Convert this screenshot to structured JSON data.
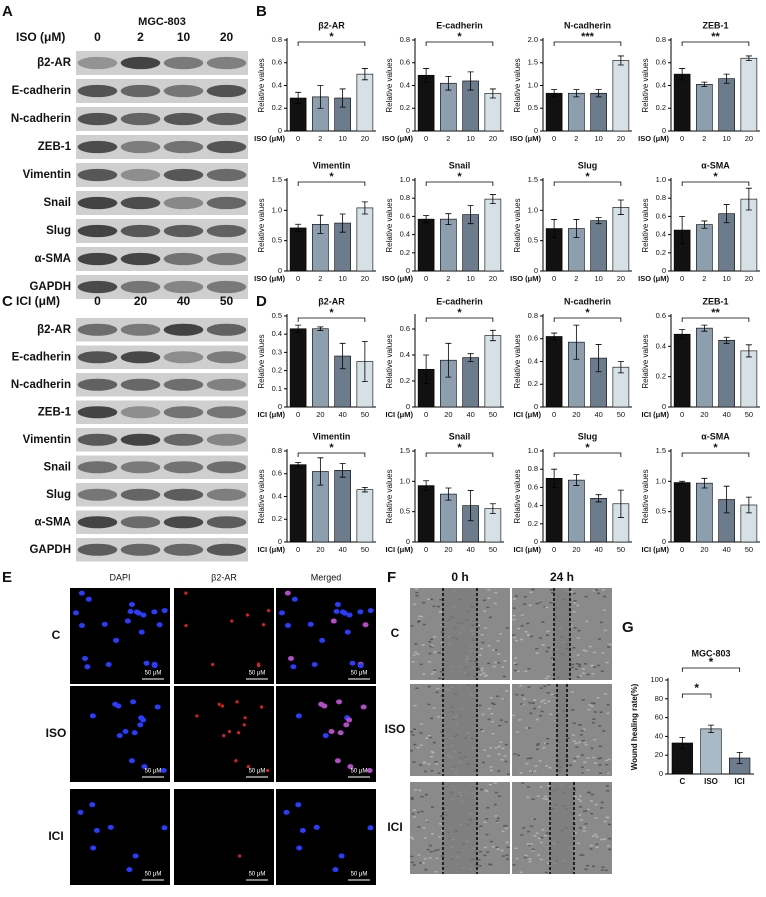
{
  "panels": {
    "a": {
      "label": "A",
      "cell_line": "MGC-803",
      "treatment": "ISO (μM)",
      "doses": [
        "0",
        "2",
        "10",
        "20"
      ],
      "proteins": [
        "β2-AR",
        "E-cadherin",
        "N-cadherin",
        "ZEB-1",
        "Vimentin",
        "Snail",
        "Slug",
        "α-SMA",
        "GAPDH"
      ]
    },
    "b": {
      "label": "B"
    },
    "c": {
      "label": "C",
      "treatment": "ICI (μM)",
      "doses": [
        "0",
        "20",
        "40",
        "50"
      ],
      "proteins": [
        "β2-AR",
        "E-cadherin",
        "N-cadherin",
        "ZEB-1",
        "Vimentin",
        "Snail",
        "Slug",
        "α-SMA",
        "GAPDH"
      ]
    },
    "d": {
      "label": "D"
    },
    "e": {
      "label": "E",
      "columns": [
        "DAPI",
        "β2-AR",
        "Merged"
      ],
      "rows": [
        "C",
        "ISO",
        "ICI"
      ],
      "scale_bar": "50 μM"
    },
    "f": {
      "label": "F",
      "columns": [
        "0 h",
        "24 h"
      ],
      "rows": [
        "C",
        "ISO",
        "ICI"
      ]
    },
    "g": {
      "label": "G"
    }
  },
  "chart_data": [
    {
      "type": "bar",
      "title": "β2-AR",
      "y_label": "Relative values",
      "x_label": "ISO (μM)",
      "categories": [
        "0",
        "2",
        "10",
        "20"
      ],
      "values": [
        0.29,
        0.3,
        0.29,
        0.5
      ],
      "errors": [
        0.05,
        0.1,
        0.08,
        0.05
      ],
      "colors": [
        "#111111",
        "#8d9eae",
        "#6c7c8c",
        "#d6e1e6"
      ],
      "ylim": [
        0,
        0.8
      ],
      "yticks": [
        0,
        0.2,
        0.4,
        0.6,
        0.8
      ],
      "significance": "*"
    },
    {
      "type": "bar",
      "title": "E-cadherin",
      "y_label": "Relative values",
      "x_label": "ISO (μM)",
      "categories": [
        "0",
        "2",
        "10",
        "20"
      ],
      "values": [
        0.49,
        0.42,
        0.44,
        0.33
      ],
      "errors": [
        0.06,
        0.06,
        0.08,
        0.04
      ],
      "colors": [
        "#111111",
        "#8d9eae",
        "#6c7c8c",
        "#d6e1e6"
      ],
      "ylim": [
        0,
        0.8
      ],
      "yticks": [
        0,
        0.2,
        0.4,
        0.6,
        0.8
      ],
      "significance": "*"
    },
    {
      "type": "bar",
      "title": "N-cadherin",
      "y_label": "Relative values",
      "x_label": "ISO (μM)",
      "categories": [
        "0",
        "2",
        "10",
        "20"
      ],
      "values": [
        0.83,
        0.83,
        0.83,
        1.55
      ],
      "errors": [
        0.08,
        0.08,
        0.08,
        0.1
      ],
      "colors": [
        "#111111",
        "#8d9eae",
        "#6c7c8c",
        "#d6e1e6"
      ],
      "ylim": [
        0,
        2
      ],
      "yticks": [
        0,
        0.5,
        {
          "value": 1,
          "label": "1.0"
        },
        1.5,
        {
          "value": 2,
          "label": "2.0"
        }
      ],
      "significance": "***"
    },
    {
      "type": "bar",
      "title": "ZEB-1",
      "y_label": "Relative values",
      "x_label": "ISO (μM)",
      "categories": [
        "0",
        "2",
        "10",
        "20"
      ],
      "values": [
        0.5,
        0.41,
        0.46,
        0.64
      ],
      "errors": [
        0.05,
        0.02,
        0.04,
        0.02
      ],
      "colors": [
        "#111111",
        "#8d9eae",
        "#6c7c8c",
        "#d6e1e6"
      ],
      "ylim": [
        0,
        0.8
      ],
      "yticks": [
        0,
        0.2,
        0.4,
        0.6,
        0.8
      ],
      "significance": "**"
    },
    {
      "type": "bar",
      "title": "Vimentin",
      "y_label": "Relative values",
      "x_label": "ISO (μM)",
      "categories": [
        "0",
        "2",
        "10",
        "20"
      ],
      "values": [
        0.71,
        0.77,
        0.79,
        1.04
      ],
      "errors": [
        0.06,
        0.15,
        0.15,
        0.1
      ],
      "colors": [
        "#111111",
        "#8d9eae",
        "#6c7c8c",
        "#d6e1e6"
      ],
      "ylim": [
        0,
        1.5
      ],
      "yticks": [
        0,
        0.5,
        {
          "value": 1,
          "label": "1.0"
        },
        1.5
      ],
      "significance": "*"
    },
    {
      "type": "bar",
      "title": "Snail",
      "y_label": "Relative values",
      "x_label": "ISO (μM)",
      "categories": [
        "0",
        "2",
        "10",
        "20"
      ],
      "values": [
        0.57,
        0.57,
        0.62,
        0.79
      ],
      "errors": [
        0.04,
        0.06,
        0.1,
        0.05
      ],
      "colors": [
        "#111111",
        "#8d9eae",
        "#6c7c8c",
        "#d6e1e6"
      ],
      "ylim": [
        0,
        1
      ],
      "yticks": [
        0,
        0.2,
        0.4,
        0.6,
        0.8,
        {
          "value": 1,
          "label": "1.0"
        }
      ],
      "significance": "*"
    },
    {
      "type": "bar",
      "title": "Slug",
      "y_label": "Relative values",
      "x_label": "ISO (μM)",
      "categories": [
        "0",
        "2",
        "10",
        "20"
      ],
      "values": [
        0.7,
        0.7,
        0.83,
        1.05
      ],
      "errors": [
        0.15,
        0.15,
        0.05,
        0.12
      ],
      "colors": [
        "#111111",
        "#8d9eae",
        "#6c7c8c",
        "#d6e1e6"
      ],
      "ylim": [
        0,
        1.5
      ],
      "yticks": [
        0,
        0.5,
        {
          "value": 1,
          "label": "1.0"
        },
        1.5
      ],
      "significance": "*"
    },
    {
      "type": "bar",
      "title": "α-SMA",
      "y_label": "Relative values",
      "x_label": "ISO (μM)",
      "categories": [
        "0",
        "2",
        "10",
        "20"
      ],
      "values": [
        0.45,
        0.51,
        0.63,
        0.79
      ],
      "errors": [
        0.15,
        0.04,
        0.1,
        0.12
      ],
      "colors": [
        "#111111",
        "#8d9eae",
        "#6c7c8c",
        "#d6e1e6"
      ],
      "ylim": [
        0,
        1
      ],
      "yticks": [
        0,
        0.2,
        0.4,
        0.6,
        0.8,
        {
          "value": 1,
          "label": "1.0"
        }
      ],
      "significance": "*"
    },
    {
      "type": "bar",
      "title": "β2-AR",
      "y_label": "Relative values",
      "x_label": "ICI (μM)",
      "categories": [
        "0",
        "20",
        "40",
        "50"
      ],
      "values": [
        0.43,
        0.43,
        0.28,
        0.25
      ],
      "errors": [
        0.02,
        0.01,
        0.07,
        0.11
      ],
      "colors": [
        "#111111",
        "#8d9eae",
        "#6c7c8c",
        "#d6e1e6"
      ],
      "ylim": [
        0,
        0.5
      ],
      "yticks": [
        0,
        0.1,
        0.2,
        0.3,
        0.4,
        0.5
      ],
      "significance": "*"
    },
    {
      "type": "bar",
      "title": "E-cadherin",
      "y_label": "Relative values",
      "x_label": "ICI (μM)",
      "categories": [
        "0",
        "20",
        "40",
        "50"
      ],
      "values": [
        0.29,
        0.36,
        0.38,
        0.55
      ],
      "errors": [
        0.11,
        0.13,
        0.03,
        0.04
      ],
      "colors": [
        "#111111",
        "#8d9eae",
        "#6c7c8c",
        "#d6e1e6"
      ],
      "ylim": [
        0,
        0.7
      ],
      "yticks": [
        0,
        0.2,
        0.4,
        0.6
      ],
      "significance": "*"
    },
    {
      "type": "bar",
      "title": "N-cadherin",
      "y_label": "Relative values",
      "x_label": "ICI (μM)",
      "categories": [
        "0",
        "20",
        "40",
        "50"
      ],
      "values": [
        0.62,
        0.57,
        0.43,
        0.35
      ],
      "errors": [
        0.03,
        0.15,
        0.12,
        0.05
      ],
      "colors": [
        "#111111",
        "#8d9eae",
        "#6c7c8c",
        "#d6e1e6"
      ],
      "ylim": [
        0,
        0.8
      ],
      "yticks": [
        0,
        0.2,
        0.4,
        0.6,
        0.8
      ],
      "significance": "*"
    },
    {
      "type": "bar",
      "title": "ZEB-1",
      "y_label": "Relative values",
      "x_label": "ICI (μM)",
      "categories": [
        "0",
        "20",
        "40",
        "50"
      ],
      "values": [
        0.48,
        0.52,
        0.44,
        0.37
      ],
      "errors": [
        0.03,
        0.02,
        0.02,
        0.04
      ],
      "colors": [
        "#111111",
        "#8d9eae",
        "#6c7c8c",
        "#d6e1e6"
      ],
      "ylim": [
        0,
        0.6
      ],
      "yticks": [
        0,
        0.2,
        0.4,
        0.6
      ],
      "significance": "**"
    },
    {
      "type": "bar",
      "title": "Vimentin",
      "y_label": "Relative values",
      "x_label": "ICI (μM)",
      "categories": [
        "0",
        "20",
        "40",
        "50"
      ],
      "values": [
        0.68,
        0.62,
        0.63,
        0.46
      ],
      "errors": [
        0.02,
        0.12,
        0.06,
        0.02
      ],
      "colors": [
        "#111111",
        "#8d9eae",
        "#6c7c8c",
        "#d6e1e6"
      ],
      "ylim": [
        0,
        0.8
      ],
      "yticks": [
        0,
        0.2,
        0.4,
        0.6,
        0.8
      ],
      "significance": "*"
    },
    {
      "type": "bar",
      "title": "Snail",
      "y_label": "Relative values",
      "x_label": "ICI (μM)",
      "categories": [
        "0",
        "20",
        "40",
        "50"
      ],
      "values": [
        0.93,
        0.79,
        0.6,
        0.55
      ],
      "errors": [
        0.08,
        0.1,
        0.25,
        0.08
      ],
      "colors": [
        "#111111",
        "#8d9eae",
        "#6c7c8c",
        "#d6e1e6"
      ],
      "ylim": [
        0,
        1.5
      ],
      "yticks": [
        0,
        0.5,
        {
          "value": 1,
          "label": "1.0"
        },
        1.5
      ],
      "significance": "*"
    },
    {
      "type": "bar",
      "title": "Slug",
      "y_label": "Relative values",
      "x_label": "ICI (μM)",
      "categories": [
        "0",
        "20",
        "40",
        "50"
      ],
      "values": [
        0.7,
        0.68,
        0.48,
        0.42
      ],
      "errors": [
        0.1,
        0.06,
        0.04,
        0.15
      ],
      "colors": [
        "#111111",
        "#8d9eae",
        "#6c7c8c",
        "#d6e1e6"
      ],
      "ylim": [
        0,
        1
      ],
      "yticks": [
        0,
        0.2,
        0.4,
        0.6,
        0.8,
        {
          "value": 1,
          "label": "1.0"
        }
      ],
      "significance": "*"
    },
    {
      "type": "bar",
      "title": "α-SMA",
      "y_label": "Relative values",
      "x_label": "ICI (μM)",
      "categories": [
        "0",
        "20",
        "40",
        "50"
      ],
      "values": [
        0.98,
        0.97,
        0.7,
        0.61
      ],
      "errors": [
        0.02,
        0.08,
        0.22,
        0.13
      ],
      "colors": [
        "#111111",
        "#8d9eae",
        "#6c7c8c",
        "#d6e1e6"
      ],
      "ylim": [
        0,
        1.5
      ],
      "yticks": [
        0,
        0.5,
        {
          "value": 1,
          "label": "1.0"
        },
        1.5
      ],
      "significance": "*"
    },
    {
      "type": "bar",
      "title": "MGC-803",
      "y_label": "Wound healing rate(%)",
      "categories": [
        "C",
        "ISO",
        "ICI"
      ],
      "values": [
        33,
        48,
        17
      ],
      "errors": [
        6,
        4,
        6
      ],
      "colors": [
        "#111111",
        "#aab9c6",
        "#6c7c8c"
      ],
      "ylim": [
        0,
        100
      ],
      "yticks": [
        0,
        20,
        40,
        60,
        80,
        100
      ],
      "significance": [
        "*",
        "*"
      ]
    }
  ]
}
